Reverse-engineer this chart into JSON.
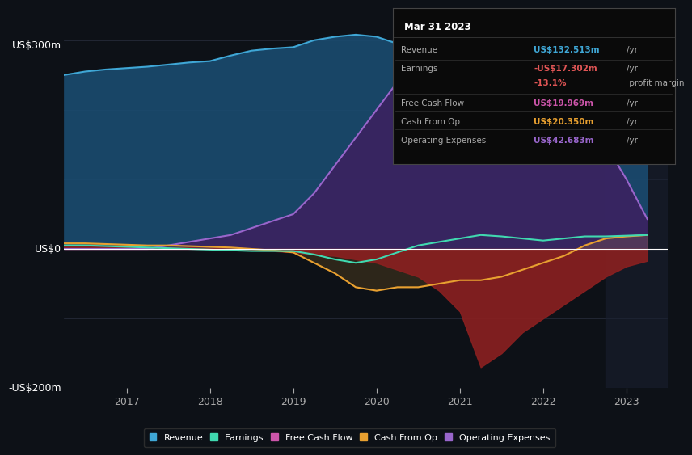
{
  "bg_color": "#0d1117",
  "plot_bg_color": "#0d1117",
  "ylim": [
    -200,
    340
  ],
  "xlim": [
    2016.25,
    2023.5
  ],
  "xticks": [
    2017,
    2018,
    2019,
    2020,
    2021,
    2022,
    2023
  ],
  "grid_color": "#2a3040",
  "zero_line_color": "#ffffff",
  "tooltip": {
    "date": "Mar 31 2023",
    "rows": [
      {
        "label": "Revenue",
        "value": "US$132.513m",
        "unit": "/yr",
        "value_color": "#3fa7d6"
      },
      {
        "label": "Earnings",
        "value": "-US$17.302m",
        "unit": "/yr",
        "value_color": "#e05555"
      },
      {
        "label": "",
        "value": "-13.1%",
        "unit": " profit margin",
        "value_color": "#e05555"
      },
      {
        "label": "Free Cash Flow",
        "value": "US$19.969m",
        "unit": "/yr",
        "value_color": "#cc55aa"
      },
      {
        "label": "Cash From Op",
        "value": "US$20.350m",
        "unit": "/yr",
        "value_color": "#e8a030"
      },
      {
        "label": "Operating Expenses",
        "value": "US$42.683m",
        "unit": "/yr",
        "value_color": "#9966cc"
      }
    ]
  },
  "series": {
    "x": [
      2016.25,
      2016.5,
      2016.75,
      2017.0,
      2017.25,
      2017.5,
      2017.75,
      2018.0,
      2018.25,
      2018.5,
      2018.75,
      2019.0,
      2019.25,
      2019.5,
      2019.75,
      2020.0,
      2020.25,
      2020.5,
      2020.75,
      2021.0,
      2021.25,
      2021.5,
      2021.75,
      2022.0,
      2022.25,
      2022.5,
      2022.75,
      2023.0,
      2023.25
    ],
    "revenue": [
      250,
      255,
      258,
      260,
      262,
      265,
      268,
      270,
      278,
      285,
      288,
      290,
      300,
      305,
      308,
      305,
      295,
      280,
      265,
      240,
      220,
      200,
      185,
      175,
      170,
      165,
      155,
      140,
      132
    ],
    "earnings": [
      5,
      5,
      4,
      4,
      3,
      2,
      2,
      1,
      0,
      -2,
      -3,
      -5,
      -8,
      -10,
      -15,
      -20,
      -30,
      -40,
      -60,
      -90,
      -170,
      -150,
      -120,
      -100,
      -80,
      -60,
      -40,
      -25,
      -17
    ],
    "free_cash_flow": [
      5,
      5,
      4,
      3,
      2,
      1,
      0,
      -1,
      -2,
      -3,
      -3,
      -3,
      -8,
      -15,
      -20,
      -15,
      -5,
      5,
      10,
      15,
      20,
      18,
      15,
      12,
      15,
      18,
      18,
      19,
      20
    ],
    "cash_from_op": [
      8,
      8,
      7,
      6,
      5,
      5,
      4,
      3,
      2,
      0,
      -2,
      -5,
      -20,
      -35,
      -55,
      -60,
      -55,
      -55,
      -50,
      -45,
      -45,
      -40,
      -30,
      -20,
      -10,
      5,
      15,
      18,
      20
    ],
    "operating_expenses": [
      0,
      0,
      0,
      0,
      0,
      5,
      10,
      15,
      20,
      30,
      40,
      50,
      80,
      120,
      160,
      200,
      240,
      270,
      290,
      300,
      295,
      280,
      250,
      225,
      200,
      175,
      150,
      100,
      43
    ]
  },
  "colors": {
    "revenue_line": "#3fa7d6",
    "revenue_fill": "#1a4a6e",
    "earnings_fill": "#8b2020",
    "free_cash_flow_line": "#40d9b0",
    "cash_from_op_line": "#e8a030",
    "operating_expenses_line": "#9966cc",
    "operating_expenses_fill": "#3d2060"
  },
  "legend_labels": [
    "Revenue",
    "Earnings",
    "Free Cash Flow",
    "Cash From Op",
    "Operating Expenses"
  ],
  "legend_colors": [
    "#3fa7d6",
    "#40d9b0",
    "#cc55aa",
    "#e8a030",
    "#9966cc"
  ],
  "shade_start": 2022.75,
  "shade_color": "#1a2030",
  "ylabel_top": "US$300m",
  "ylabel_zero": "US$0",
  "ylabel_bottom": "-US$200m"
}
